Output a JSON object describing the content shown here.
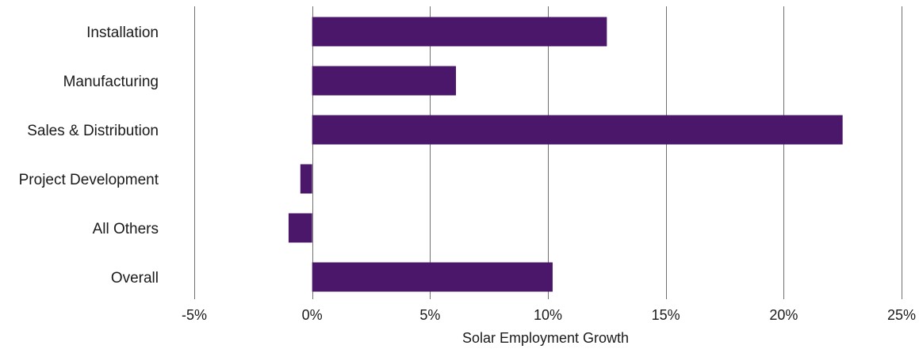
{
  "chart_data": {
    "type": "bar",
    "orientation": "horizontal",
    "categories": [
      "Installation",
      "Manufacturing",
      "Sales & Distribution",
      "Project Development",
      "All Others",
      "Overall"
    ],
    "values": [
      12.5,
      6.1,
      22.5,
      -0.5,
      -1.0,
      10.2
    ],
    "xlabel": "Solar Employment Growth",
    "ylabel": "",
    "xlim": [
      -5,
      25
    ],
    "xticks": [
      -5,
      0,
      5,
      10,
      15,
      20,
      25
    ],
    "xtick_labels": [
      "-5%",
      "0%",
      "5%",
      "10%",
      "15%",
      "20%",
      "25%"
    ],
    "grid": "vertical",
    "legend": "none",
    "bar_color": "#4b176b",
    "gridline_color": "#6f6f6f"
  }
}
